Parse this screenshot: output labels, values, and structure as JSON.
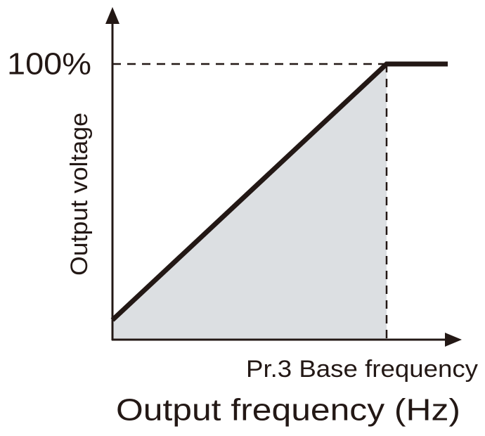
{
  "axis_labels": {
    "y": "Output voltage",
    "x": "Output frequency (Hz)"
  },
  "annotations": {
    "max_voltage": "100%",
    "base_frequency": "Pr.3 Base frequency"
  }
}
